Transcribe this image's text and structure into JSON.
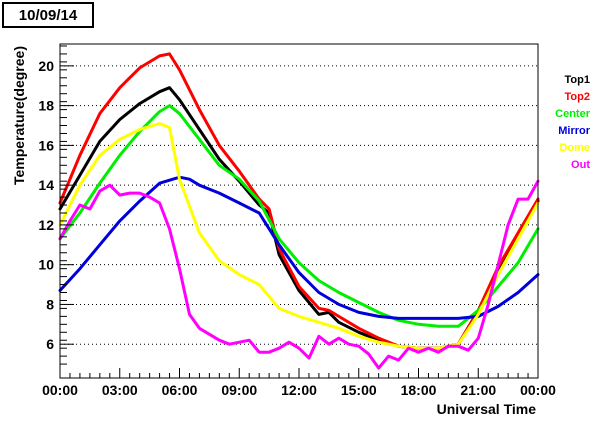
{
  "chart_data": {
    "type": "line",
    "title": "10/09/14",
    "xlabel": "Universal Time",
    "ylabel": "Temperature(degree)",
    "xlim": [
      0,
      24
    ],
    "ylim": [
      4.3,
      21.1
    ],
    "x_ticks": [
      "00:00",
      "03:00",
      "06:00",
      "09:00",
      "12:00",
      "15:00",
      "18:00",
      "21:00",
      "00:00"
    ],
    "y_ticks": [
      "6",
      "8",
      "10",
      "12",
      "14",
      "16",
      "18",
      "20"
    ],
    "grid": "horizontal dotted",
    "legend_position": "right",
    "series": [
      {
        "name": "Top1",
        "color": "#000000",
        "x": [
          0,
          1,
          2,
          3,
          4,
          5,
          5.5,
          6,
          7,
          8,
          9,
          10,
          10.5,
          11,
          12,
          13,
          13.5,
          14,
          15,
          16,
          17,
          18,
          19,
          20,
          21,
          22,
          23,
          24
        ],
        "y": [
          12.8,
          14.5,
          16.2,
          17.3,
          18.1,
          18.7,
          18.9,
          18.3,
          16.8,
          15.3,
          14.2,
          13.0,
          12.6,
          10.5,
          8.7,
          7.5,
          7.6,
          7.1,
          6.6,
          6.2,
          5.9,
          5.8,
          5.8,
          6.0,
          7.7,
          9.8,
          11.4,
          13.2
        ]
      },
      {
        "name": "Top2",
        "color": "#ff0000",
        "x": [
          0,
          1,
          2,
          3,
          4,
          5,
          5.5,
          6,
          7,
          8,
          9,
          10,
          10.5,
          11,
          12,
          13,
          13.5,
          14,
          15,
          16,
          17,
          18,
          19,
          20,
          21,
          22,
          23,
          24
        ],
        "y": [
          13.1,
          15.5,
          17.6,
          18.9,
          19.9,
          20.5,
          20.6,
          19.8,
          17.8,
          16.0,
          14.7,
          13.3,
          12.8,
          10.8,
          8.9,
          7.8,
          7.7,
          7.4,
          6.8,
          6.3,
          5.9,
          5.8,
          5.8,
          6.0,
          7.7,
          9.9,
          11.6,
          13.3
        ]
      },
      {
        "name": "Center",
        "color": "#00ee00",
        "x": [
          0,
          1,
          2,
          3,
          4,
          5,
          5.5,
          6,
          7,
          8,
          9,
          10,
          11,
          12,
          13,
          14,
          15,
          16,
          17,
          18,
          19,
          20,
          21,
          22,
          23,
          24
        ],
        "y": [
          11.3,
          12.6,
          14.1,
          15.5,
          16.7,
          17.7,
          18.0,
          17.6,
          16.3,
          15.0,
          14.3,
          13.2,
          11.3,
          10.1,
          9.2,
          8.6,
          8.1,
          7.6,
          7.2,
          7.0,
          6.9,
          6.9,
          7.7,
          8.9,
          10.1,
          11.8
        ]
      },
      {
        "name": "Mirror",
        "color": "#0000dd",
        "x": [
          0,
          1,
          2,
          3,
          4,
          5,
          6,
          6.5,
          7,
          8,
          9,
          10,
          11,
          12,
          13,
          14,
          15,
          16,
          17,
          18,
          19,
          20,
          21,
          22,
          23,
          24
        ],
        "y": [
          8.7,
          9.8,
          11.0,
          12.2,
          13.2,
          14.1,
          14.4,
          14.3,
          14.0,
          13.6,
          13.1,
          12.6,
          11.0,
          9.6,
          8.6,
          8.0,
          7.6,
          7.4,
          7.3,
          7.3,
          7.3,
          7.3,
          7.4,
          7.9,
          8.6,
          9.5
        ]
      },
      {
        "name": "Dome",
        "color": "#ffff00",
        "x": [
          0,
          1,
          2,
          3,
          4,
          5,
          5.5,
          6,
          7,
          8,
          9,
          10,
          11,
          12,
          13,
          14,
          15,
          16,
          17,
          18,
          19,
          20,
          21,
          22,
          23,
          24
        ],
        "y": [
          12.0,
          14.0,
          15.5,
          16.3,
          16.8,
          17.1,
          16.9,
          14.3,
          11.6,
          10.2,
          9.5,
          9.0,
          7.8,
          7.4,
          7.1,
          6.8,
          6.4,
          6.1,
          5.9,
          5.8,
          5.8,
          6.0,
          7.5,
          9.5,
          11.3,
          13.1
        ]
      },
      {
        "name": "Out",
        "color": "#ff00ff",
        "x": [
          0,
          0.5,
          1,
          1.5,
          2,
          2.5,
          3,
          3.5,
          4,
          4.5,
          5,
          5.5,
          6,
          6.5,
          7,
          7.5,
          8,
          8.5,
          9,
          9.5,
          10,
          10.5,
          11,
          11.5,
          12,
          12.5,
          13,
          13.5,
          14,
          14.5,
          15,
          15.5,
          16,
          16.5,
          17,
          17.5,
          18,
          18.5,
          19,
          19.5,
          20,
          20.5,
          21,
          21.5,
          22,
          22.5,
          23,
          23.5,
          24
        ],
        "y": [
          11.3,
          12.2,
          13.0,
          12.8,
          13.7,
          14.0,
          13.5,
          13.6,
          13.6,
          13.4,
          13.1,
          11.8,
          9.8,
          7.5,
          6.8,
          6.5,
          6.2,
          6.0,
          6.1,
          6.2,
          5.6,
          5.6,
          5.8,
          6.1,
          5.8,
          5.3,
          6.4,
          6.0,
          6.3,
          6.0,
          5.9,
          5.5,
          4.8,
          5.4,
          5.2,
          5.8,
          5.6,
          5.8,
          5.6,
          5.9,
          5.9,
          5.7,
          6.3,
          8.0,
          10.0,
          12.0,
          13.3,
          13.3,
          14.2
        ]
      }
    ]
  }
}
